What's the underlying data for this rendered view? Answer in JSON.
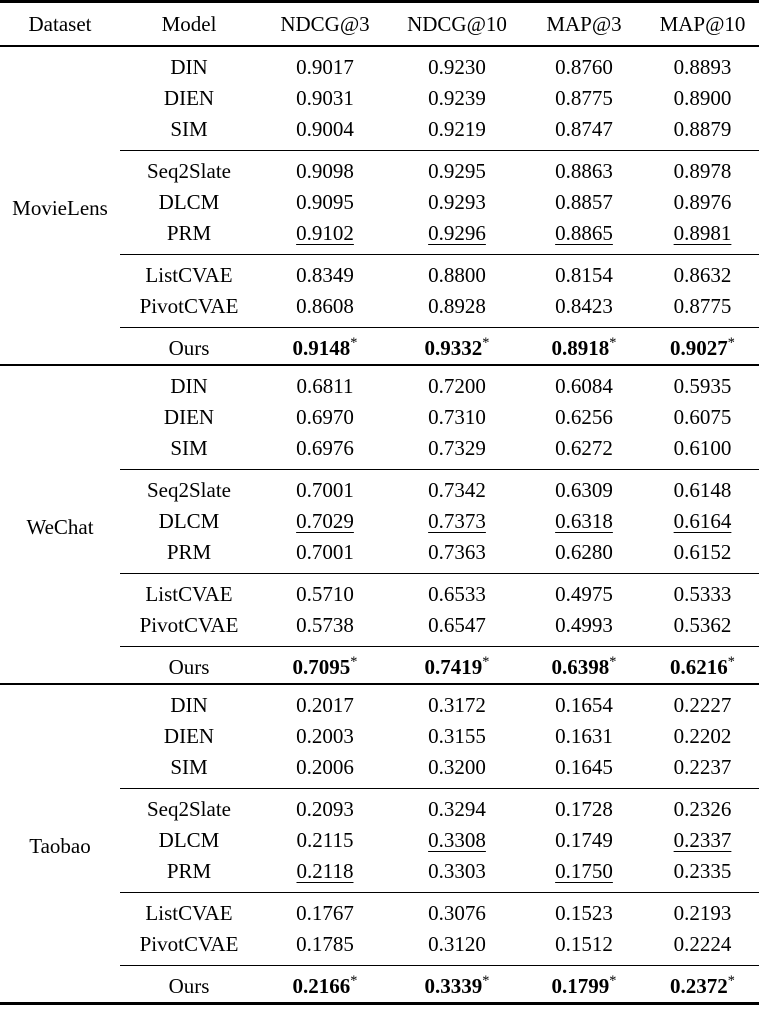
{
  "page": {
    "background_color": "#ffffff",
    "text_color": "#000000"
  },
  "table": {
    "columns": [
      "Dataset",
      "Model",
      "NDCG@3",
      "NDCG@10",
      "MAP@3",
      "MAP@10"
    ],
    "significance_marker": "*",
    "groups": [
      {
        "dataset": "MovieLens",
        "sections": [
          {
            "rows": [
              {
                "model": "DIN",
                "values": [
                  "0.9017",
                  "0.9230",
                  "0.8760",
                  "0.8893"
                ]
              },
              {
                "model": "DIEN",
                "values": [
                  "0.9031",
                  "0.9239",
                  "0.8775",
                  "0.8900"
                ]
              },
              {
                "model": "SIM",
                "values": [
                  "0.9004",
                  "0.9219",
                  "0.8747",
                  "0.8879"
                ]
              }
            ]
          },
          {
            "rows": [
              {
                "model": "Seq2Slate",
                "values": [
                  "0.9098",
                  "0.9295",
                  "0.8863",
                  "0.8978"
                ]
              },
              {
                "model": "DLCM",
                "values": [
                  "0.9095",
                  "0.9293",
                  "0.8857",
                  "0.8976"
                ]
              },
              {
                "model": "PRM",
                "values": [
                  "0.9102",
                  "0.9296",
                  "0.8865",
                  "0.8981"
                ],
                "underline": [
                  true,
                  true,
                  true,
                  true
                ]
              }
            ]
          },
          {
            "rows": [
              {
                "model": "ListCVAE",
                "values": [
                  "0.8349",
                  "0.8800",
                  "0.8154",
                  "0.8632"
                ]
              },
              {
                "model": "PivotCVAE",
                "values": [
                  "0.8608",
                  "0.8928",
                  "0.8423",
                  "0.8775"
                ]
              }
            ]
          },
          {
            "rows": [
              {
                "model": "Ours",
                "values": [
                  "0.9148",
                  "0.9332",
                  "0.8918",
                  "0.9027"
                ],
                "bold": true,
                "superscript": "*"
              }
            ]
          }
        ]
      },
      {
        "dataset": "WeChat",
        "sections": [
          {
            "rows": [
              {
                "model": "DIN",
                "values": [
                  "0.6811",
                  "0.7200",
                  "0.6084",
                  "0.5935"
                ]
              },
              {
                "model": "DIEN",
                "values": [
                  "0.6970",
                  "0.7310",
                  "0.6256",
                  "0.6075"
                ]
              },
              {
                "model": "SIM",
                "values": [
                  "0.6976",
                  "0.7329",
                  "0.6272",
                  "0.6100"
                ]
              }
            ]
          },
          {
            "rows": [
              {
                "model": "Seq2Slate",
                "values": [
                  "0.7001",
                  "0.7342",
                  "0.6309",
                  "0.6148"
                ]
              },
              {
                "model": "DLCM",
                "values": [
                  "0.7029",
                  "0.7373",
                  "0.6318",
                  "0.6164"
                ],
                "underline": [
                  true,
                  true,
                  true,
                  true
                ]
              },
              {
                "model": "PRM",
                "values": [
                  "0.7001",
                  "0.7363",
                  "0.6280",
                  "0.6152"
                ]
              }
            ]
          },
          {
            "rows": [
              {
                "model": "ListCVAE",
                "values": [
                  "0.5710",
                  "0.6533",
                  "0.4975",
                  "0.5333"
                ]
              },
              {
                "model": "PivotCVAE",
                "values": [
                  "0.5738",
                  "0.6547",
                  "0.4993",
                  "0.5362"
                ]
              }
            ]
          },
          {
            "rows": [
              {
                "model": "Ours",
                "values": [
                  "0.7095",
                  "0.7419",
                  "0.6398",
                  "0.6216"
                ],
                "bold": true,
                "superscript": "*"
              }
            ]
          }
        ]
      },
      {
        "dataset": "Taobao",
        "sections": [
          {
            "rows": [
              {
                "model": "DIN",
                "values": [
                  "0.2017",
                  "0.3172",
                  "0.1654",
                  "0.2227"
                ]
              },
              {
                "model": "DIEN",
                "values": [
                  "0.2003",
                  "0.3155",
                  "0.1631",
                  "0.2202"
                ]
              },
              {
                "model": "SIM",
                "values": [
                  "0.2006",
                  "0.3200",
                  "0.1645",
                  "0.2237"
                ]
              }
            ]
          },
          {
            "rows": [
              {
                "model": "Seq2Slate",
                "values": [
                  "0.2093",
                  "0.3294",
                  "0.1728",
                  "0.2326"
                ]
              },
              {
                "model": "DLCM",
                "values": [
                  "0.2115",
                  "0.3308",
                  "0.1749",
                  "0.2337"
                ],
                "underline": [
                  false,
                  true,
                  false,
                  true
                ]
              },
              {
                "model": "PRM",
                "values": [
                  "0.2118",
                  "0.3303",
                  "0.1750",
                  "0.2335"
                ],
                "underline": [
                  true,
                  false,
                  true,
                  false
                ]
              }
            ]
          },
          {
            "rows": [
              {
                "model": "ListCVAE",
                "values": [
                  "0.1767",
                  "0.3076",
                  "0.1523",
                  "0.2193"
                ]
              },
              {
                "model": "PivotCVAE",
                "values": [
                  "0.1785",
                  "0.3120",
                  "0.1512",
                  "0.2224"
                ]
              }
            ]
          },
          {
            "rows": [
              {
                "model": "Ours",
                "values": [
                  "0.2166",
                  "0.3339",
                  "0.1799",
                  "0.2372"
                ],
                "bold": true,
                "superscript": "*"
              }
            ]
          }
        ]
      }
    ]
  }
}
